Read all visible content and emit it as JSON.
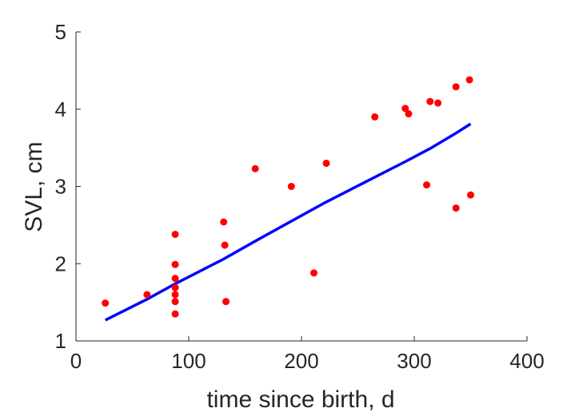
{
  "chart_data": {
    "type": "scatter",
    "xlabel": "time since birth, d",
    "ylabel": "SVL, cm",
    "xlim": [
      0,
      400
    ],
    "ylim": [
      1,
      5
    ],
    "xticks": [
      0,
      100,
      200,
      300,
      400
    ],
    "yticks": [
      1,
      2,
      3,
      4,
      5
    ],
    "grid": false,
    "series": [
      {
        "kind": "points",
        "color": "#ff0000",
        "points": [
          [
            26,
            1.49
          ],
          [
            63,
            1.6
          ],
          [
            88,
            2.38
          ],
          [
            88,
            1.99
          ],
          [
            88,
            1.81
          ],
          [
            88,
            1.69
          ],
          [
            88,
            1.6
          ],
          [
            88,
            1.51
          ],
          [
            88,
            1.35
          ],
          [
            131,
            2.54
          ],
          [
            132,
            2.24
          ],
          [
            133,
            1.51
          ],
          [
            159,
            3.23
          ],
          [
            191,
            3.0
          ],
          [
            211,
            1.88
          ],
          [
            222,
            3.3
          ],
          [
            265,
            3.9
          ],
          [
            292,
            4.01
          ],
          [
            295,
            3.94
          ],
          [
            311,
            3.02
          ],
          [
            314,
            4.1
          ],
          [
            321,
            4.08
          ],
          [
            337,
            2.72
          ],
          [
            337,
            4.29
          ],
          [
            349,
            4.38
          ],
          [
            350,
            2.89
          ]
        ]
      },
      {
        "kind": "line",
        "color": "#0000ff",
        "points": [
          [
            26,
            1.27
          ],
          [
            63,
            1.54
          ],
          [
            88,
            1.74
          ],
          [
            131,
            2.06
          ],
          [
            160,
            2.3
          ],
          [
            191,
            2.55
          ],
          [
            222,
            2.8
          ],
          [
            265,
            3.12
          ],
          [
            292,
            3.32
          ],
          [
            314,
            3.49
          ],
          [
            337,
            3.69
          ],
          [
            350,
            3.81
          ]
        ]
      }
    ]
  }
}
